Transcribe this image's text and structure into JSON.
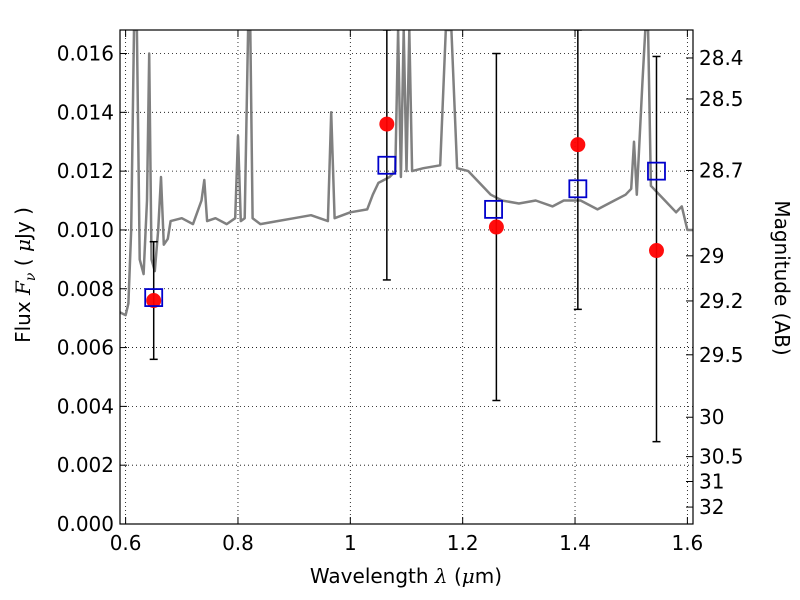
{
  "chart_data": {
    "type": "scatter",
    "xlabel": "Wavelength  λ (μm)",
    "ylabel": "Flux  Fν  ( μJy )",
    "ylabel_right": "Magnitude (AB)",
    "xlim": [
      0.59,
      1.61
    ],
    "ylim": [
      0.0,
      0.0168
    ],
    "grid": true,
    "x_ticks": [
      {
        "value": 0.6,
        "label": "0.6"
      },
      {
        "value": 0.8,
        "label": "0.8"
      },
      {
        "value": 1.0,
        "label": "1"
      },
      {
        "value": 1.2,
        "label": "1.2"
      },
      {
        "value": 1.4,
        "label": "1.4"
      },
      {
        "value": 1.6,
        "label": "1.6"
      }
    ],
    "y_ticks": [
      {
        "value": 0.0,
        "label": "0.000"
      },
      {
        "value": 0.002,
        "label": "0.002"
      },
      {
        "value": 0.004,
        "label": "0.004"
      },
      {
        "value": 0.006,
        "label": "0.006"
      },
      {
        "value": 0.008,
        "label": "0.008"
      },
      {
        "value": 0.01,
        "label": "0.010"
      },
      {
        "value": 0.012,
        "label": "0.012"
      },
      {
        "value": 0.014,
        "label": "0.014"
      },
      {
        "value": 0.016,
        "label": "0.016"
      }
    ],
    "mag_ticks": [
      {
        "value": 28.4,
        "label": "28.4"
      },
      {
        "value": 28.5,
        "label": "28.5"
      },
      {
        "value": 28.7,
        "label": "28.7"
      },
      {
        "value": 29.0,
        "label": "29"
      },
      {
        "value": 29.2,
        "label": "29.2"
      },
      {
        "value": 29.5,
        "label": "29.5"
      },
      {
        "value": 30.0,
        "label": "30"
      },
      {
        "value": 30.5,
        "label": "30.5"
      },
      {
        "value": 31.0,
        "label": "31"
      },
      {
        "value": 32.0,
        "label": "32"
      }
    ],
    "observed": [
      {
        "x": 0.65,
        "y": 0.0076,
        "yerr_low": 0.0056,
        "yerr_high": 0.0096
      },
      {
        "x": 1.065,
        "y": 0.0136,
        "yerr_low": 0.0083,
        "yerr_high": 0.0168
      },
      {
        "x": 1.26,
        "y": 0.0101,
        "yerr_low": 0.0042,
        "yerr_high": 0.016
      },
      {
        "x": 1.405,
        "y": 0.0129,
        "yerr_low": 0.0073,
        "yerr_high": 0.0168
      },
      {
        "x": 1.545,
        "y": 0.0093,
        "yerr_low": 0.0028,
        "yerr_high": 0.0159
      }
    ],
    "model_photometry": [
      {
        "x": 0.65,
        "y": 0.0077
      },
      {
        "x": 1.065,
        "y": 0.0122
      },
      {
        "x": 1.255,
        "y": 0.0107
      },
      {
        "x": 1.405,
        "y": 0.0114
      },
      {
        "x": 1.545,
        "y": 0.012
      }
    ],
    "spectrum": [
      [
        0.59,
        0.0072
      ],
      [
        0.6,
        0.0071
      ],
      [
        0.605,
        0.0075
      ],
      [
        0.61,
        0.01
      ],
      [
        0.615,
        0.0168
      ],
      [
        0.62,
        0.0168
      ],
      [
        0.625,
        0.009
      ],
      [
        0.632,
        0.0085
      ],
      [
        0.638,
        0.011
      ],
      [
        0.642,
        0.016
      ],
      [
        0.646,
        0.009
      ],
      [
        0.652,
        0.0086
      ],
      [
        0.658,
        0.01
      ],
      [
        0.663,
        0.0118
      ],
      [
        0.668,
        0.0095
      ],
      [
        0.675,
        0.0097
      ],
      [
        0.68,
        0.0103
      ],
      [
        0.7,
        0.0104
      ],
      [
        0.72,
        0.0102
      ],
      [
        0.735,
        0.011
      ],
      [
        0.74,
        0.0117
      ],
      [
        0.745,
        0.0103
      ],
      [
        0.76,
        0.0104
      ],
      [
        0.78,
        0.0102
      ],
      [
        0.795,
        0.0104
      ],
      [
        0.8,
        0.0132
      ],
      [
        0.805,
        0.0103
      ],
      [
        0.812,
        0.0104
      ],
      [
        0.818,
        0.0168
      ],
      [
        0.822,
        0.0168
      ],
      [
        0.826,
        0.0104
      ],
      [
        0.84,
        0.0102
      ],
      [
        0.87,
        0.0103
      ],
      [
        0.9,
        0.0104
      ],
      [
        0.93,
        0.0105
      ],
      [
        0.96,
        0.0103
      ],
      [
        0.966,
        0.014
      ],
      [
        0.972,
        0.0104
      ],
      [
        1.0,
        0.0106
      ],
      [
        1.03,
        0.0107
      ],
      [
        1.04,
        0.0112
      ],
      [
        1.05,
        0.0116
      ],
      [
        1.07,
        0.0118
      ],
      [
        1.08,
        0.012
      ],
      [
        1.085,
        0.0168
      ],
      [
        1.09,
        0.0118
      ],
      [
        1.095,
        0.0168
      ],
      [
        1.1,
        0.012
      ],
      [
        1.105,
        0.0168
      ],
      [
        1.11,
        0.012
      ],
      [
        1.13,
        0.0121
      ],
      [
        1.16,
        0.0122
      ],
      [
        1.17,
        0.0168
      ],
      [
        1.18,
        0.0168
      ],
      [
        1.19,
        0.0121
      ],
      [
        1.21,
        0.012
      ],
      [
        1.23,
        0.0116
      ],
      [
        1.25,
        0.0112
      ],
      [
        1.27,
        0.011
      ],
      [
        1.3,
        0.0109
      ],
      [
        1.33,
        0.011
      ],
      [
        1.36,
        0.0108
      ],
      [
        1.38,
        0.011
      ],
      [
        1.41,
        0.011
      ],
      [
        1.44,
        0.0107
      ],
      [
        1.47,
        0.011
      ],
      [
        1.49,
        0.0112
      ],
      [
        1.5,
        0.0114
      ],
      [
        1.505,
        0.013
      ],
      [
        1.51,
        0.0112
      ],
      [
        1.52,
        0.015
      ],
      [
        1.525,
        0.0168
      ],
      [
        1.53,
        0.0168
      ],
      [
        1.535,
        0.0115
      ],
      [
        1.56,
        0.011
      ],
      [
        1.58,
        0.0106
      ],
      [
        1.59,
        0.0108
      ],
      [
        1.6,
        0.01
      ],
      [
        1.61,
        0.01
      ]
    ],
    "colors": {
      "spectrum": "#808080",
      "observed": "#ff0000",
      "model_photometry": "#0000cc",
      "errorbar": "#000000"
    }
  }
}
